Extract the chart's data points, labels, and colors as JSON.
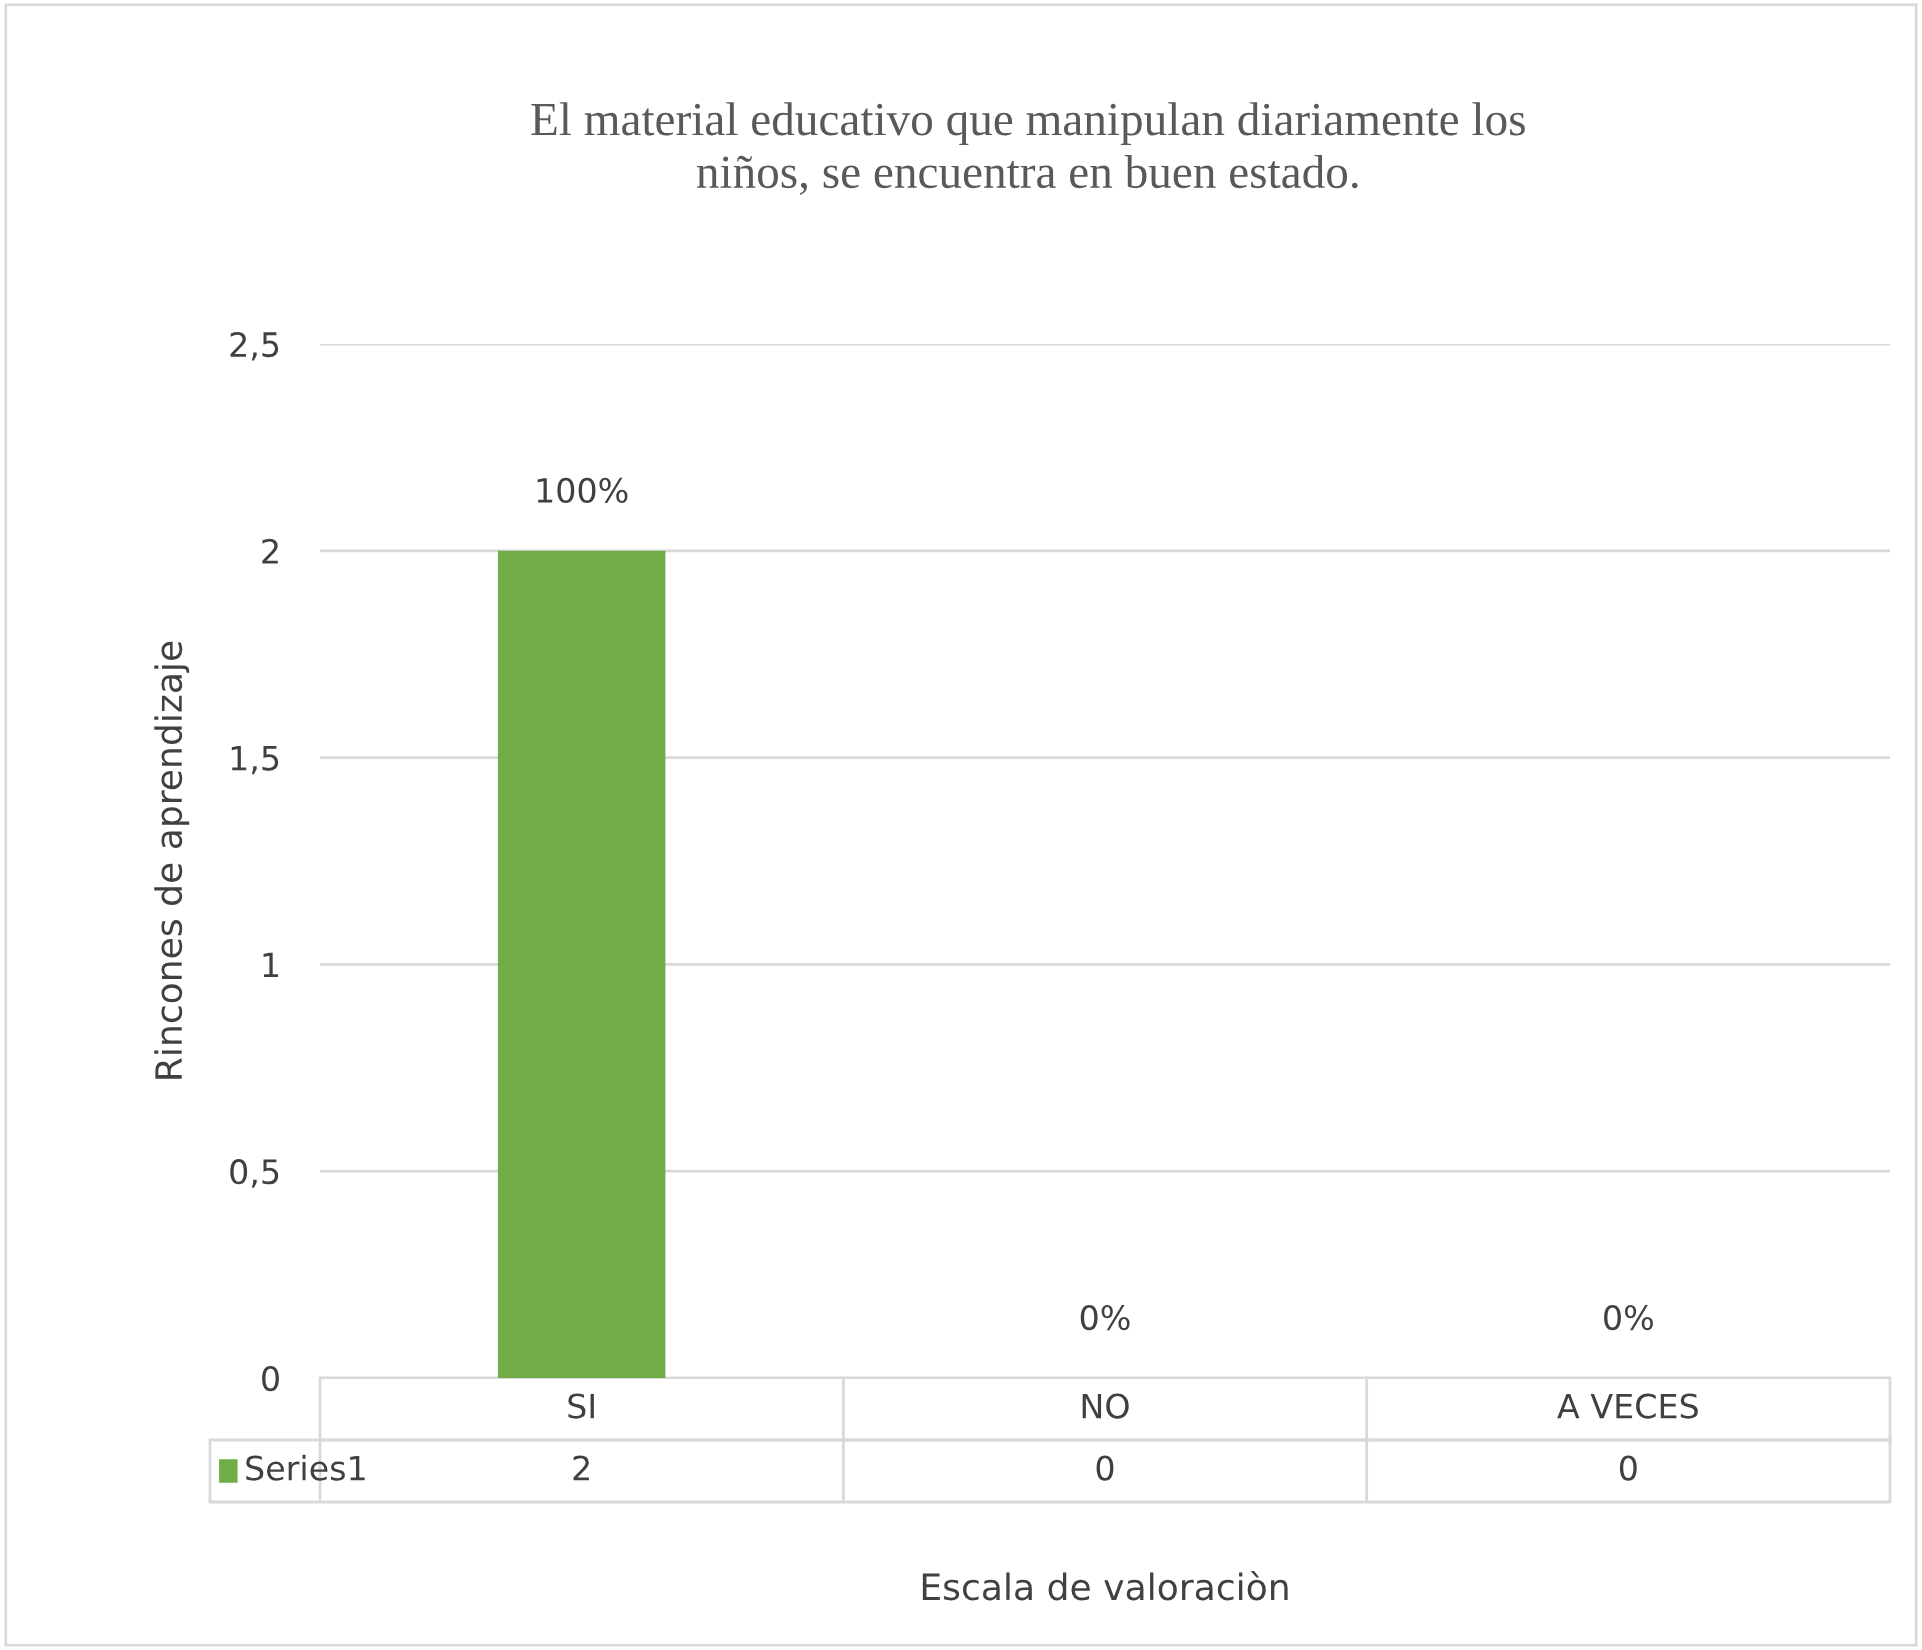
{
  "chart_data": {
    "type": "bar",
    "title": "El material educativo que manipulan diariamente los\nniños, se encuentra en buen estado.",
    "xlabel": "Escala de valoraciòn",
    "ylabel": "Rincones de aprendizaje",
    "categories": [
      "SI",
      "NO",
      "A VECES"
    ],
    "series": [
      {
        "name": "Series1",
        "color": "#70ad47",
        "values": [
          2,
          0,
          0
        ]
      }
    ],
    "value_labels": [
      "100%",
      "0%",
      "0%"
    ],
    "data_labels": true,
    "ylim": [
      0,
      2.5
    ],
    "yticks": [
      {
        "value": 0,
        "label": "0"
      },
      {
        "value": 0.5,
        "label": "0,5"
      },
      {
        "value": 1,
        "label": "1"
      },
      {
        "value": 1.5,
        "label": "1,5"
      },
      {
        "value": 2,
        "label": "2"
      },
      {
        "value": 2.5,
        "label": "2,5"
      }
    ],
    "grid": "y"
  }
}
